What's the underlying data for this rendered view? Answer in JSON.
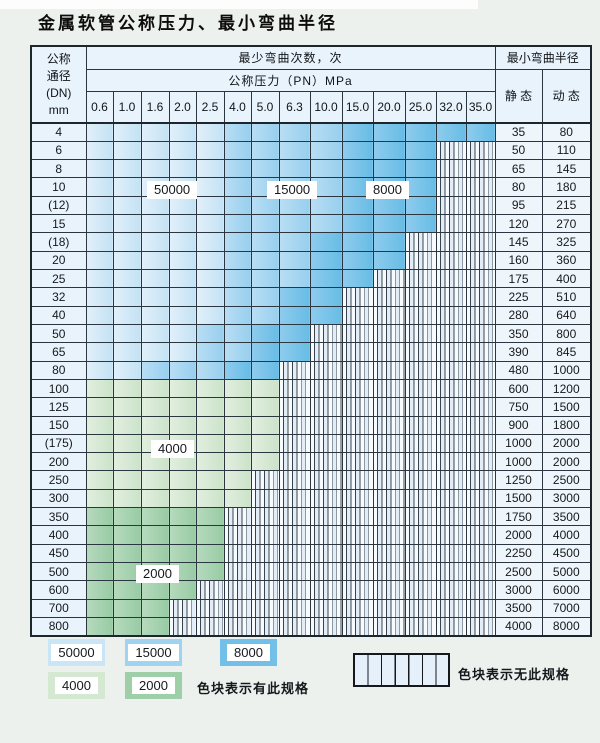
{
  "page": {
    "title": "金属软管公称压力、最小弯曲半径"
  },
  "colors": {
    "cycles_50000": "#c9e5f6",
    "cycles_15000": "#9fd3f0",
    "cycles_8000": "#72c0e8",
    "cycles_4000": "#d5e8d2",
    "cycles_2000": "#9ecfa9",
    "grid_line": "#2c3640",
    "header_bg": "#e9f3fb",
    "page_bg": "#edf1ee"
  },
  "table": {
    "dn_header_lines": [
      "公称",
      "通径",
      "(DN)",
      "mm"
    ],
    "bend_cycles_header": "最少弯曲次数，次",
    "pressure_header": "公称压力（PN）MPa",
    "radius_header": "最小弯曲半径",
    "static_header": "静 态",
    "dynamic_header": "动 态",
    "pressures": [
      "0.6",
      "1.0",
      "1.6",
      "2.0",
      "2.5",
      "4.0",
      "5.0",
      "6.3",
      "10.0",
      "15.0",
      "20.0",
      "25.0",
      "32.0",
      "35.0"
    ],
    "zone_codes": {
      "L": "50000",
      "M": "15000",
      "D": "8000",
      "G": "4000",
      "E": "2000",
      "S": "无此规格"
    },
    "rows": [
      {
        "dn": "4",
        "zones": "LLLLLMMMMDDDDD",
        "static": "35",
        "dynamic": "80"
      },
      {
        "dn": "6",
        "zones": "LLLLLMMMMDDDSS",
        "static": "50",
        "dynamic": "110"
      },
      {
        "dn": "8",
        "zones": "LLLLLMMMMDDDSS",
        "static": "65",
        "dynamic": "145"
      },
      {
        "dn": "10",
        "zones": "LLLLLMMMMDDDSS",
        "static": "80",
        "dynamic": "180"
      },
      {
        "dn": "(12)",
        "zones": "LLLLLMMMMDDDSS",
        "static": "95",
        "dynamic": "215"
      },
      {
        "dn": "15",
        "zones": "LLLLLMMMMDDDSS",
        "static": "120",
        "dynamic": "270"
      },
      {
        "dn": "(18)",
        "zones": "LLLLLMMMDDDSSS",
        "static": "145",
        "dynamic": "325"
      },
      {
        "dn": "20",
        "zones": "LLLLLMMMDDDSSS",
        "static": "160",
        "dynamic": "360"
      },
      {
        "dn": "25",
        "zones": "LLLLLMMMDDSSSS",
        "static": "175",
        "dynamic": "400"
      },
      {
        "dn": "32",
        "zones": "LLLLLMMDDSSSSS",
        "static": "225",
        "dynamic": "510"
      },
      {
        "dn": "40",
        "zones": "LLLLLMMDDSSSSS",
        "static": "280",
        "dynamic": "640"
      },
      {
        "dn": "50",
        "zones": "LLLLMMDDSSSSSS",
        "static": "350",
        "dynamic": "800"
      },
      {
        "dn": "65",
        "zones": "LLLLMMDDSSSSSS",
        "static": "390",
        "dynamic": "845"
      },
      {
        "dn": "80",
        "zones": "LLMMMDDSSSSSSS",
        "static": "480",
        "dynamic": "1000"
      },
      {
        "dn": "100",
        "zones": "GGGGGGGSSSSSSS",
        "static": "600",
        "dynamic": "1200"
      },
      {
        "dn": "125",
        "zones": "GGGGGGGSSSSSSS",
        "static": "750",
        "dynamic": "1500"
      },
      {
        "dn": "150",
        "zones": "GGGGGGGSSSSSSS",
        "static": "900",
        "dynamic": "1800"
      },
      {
        "dn": "(175)",
        "zones": "GGGGGGGSSSSSSS",
        "static": "1000",
        "dynamic": "2000"
      },
      {
        "dn": "200",
        "zones": "GGGGGGGSSSSSSS",
        "static": "1000",
        "dynamic": "2000"
      },
      {
        "dn": "250",
        "zones": "GGGGGGSSSSSSSS",
        "static": "1250",
        "dynamic": "2500"
      },
      {
        "dn": "300",
        "zones": "GGGGGGSSSSSSSS",
        "static": "1500",
        "dynamic": "3000"
      },
      {
        "dn": "350",
        "zones": "EEEEESSSSSSSSS",
        "static": "1750",
        "dynamic": "3500"
      },
      {
        "dn": "400",
        "zones": "EEEEESSSSSSSSS",
        "static": "2000",
        "dynamic": "4000"
      },
      {
        "dn": "450",
        "zones": "EEEEESSSSSSSSS",
        "static": "2250",
        "dynamic": "4500"
      },
      {
        "dn": "500",
        "zones": "EEEEESSSSSSSSS",
        "static": "2500",
        "dynamic": "5000"
      },
      {
        "dn": "600",
        "zones": "EEEESSSSSSSSSS",
        "static": "3000",
        "dynamic": "6000"
      },
      {
        "dn": "700",
        "zones": "EEESSSSSSSSSSS",
        "static": "3500",
        "dynamic": "7000"
      },
      {
        "dn": "800",
        "zones": "EEESSSSSSSSSSS",
        "static": "4000",
        "dynamic": "8000"
      }
    ],
    "zone_labels": [
      "50000",
      "15000",
      "8000",
      "4000",
      "2000"
    ]
  },
  "legend": {
    "items": [
      {
        "value": "50000",
        "zone": "L"
      },
      {
        "value": "15000",
        "zone": "M"
      },
      {
        "value": "8000",
        "zone": "D"
      },
      {
        "value": "4000",
        "zone": "G"
      },
      {
        "value": "2000",
        "zone": "E"
      }
    ],
    "has_spec_text": "色块表示有此规格",
    "no_spec_text": "色块表示无此规格"
  }
}
